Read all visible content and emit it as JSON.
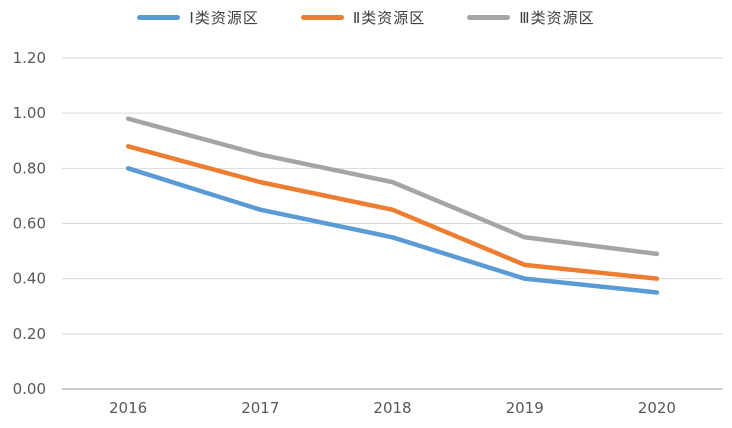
{
  "chart_data": {
    "type": "line",
    "title": "",
    "xlabel": "",
    "ylabel": "",
    "categories": [
      "2016",
      "2017",
      "2018",
      "2019",
      "2020"
    ],
    "series": [
      {
        "name": "Ⅰ类资源区",
        "color": "#5B9BD5",
        "values": [
          0.8,
          0.65,
          0.55,
          0.4,
          0.35
        ]
      },
      {
        "name": "Ⅱ类资源区",
        "color": "#ED7D31",
        "values": [
          0.88,
          0.75,
          0.65,
          0.45,
          0.4
        ]
      },
      {
        "name": "Ⅲ类资源区",
        "color": "#A5A5A5",
        "values": [
          0.98,
          0.85,
          0.75,
          0.55,
          0.49
        ]
      }
    ],
    "ylim": [
      0,
      1.2
    ],
    "yticks": [
      0.0,
      0.2,
      0.4,
      0.6,
      0.8,
      1.0,
      1.2
    ],
    "ytick_labels": [
      "0.00",
      "0.20",
      "0.40",
      "0.60",
      "0.80",
      "1.00",
      "1.20"
    ],
    "legend_position": "top",
    "grid": "horizontal",
    "colors": {
      "axis_text": "#595959",
      "legend_text": "#404040",
      "gridline": "#D9D9D9",
      "axis_line": "#BFBFBF",
      "background": "#FFFFFF"
    }
  }
}
